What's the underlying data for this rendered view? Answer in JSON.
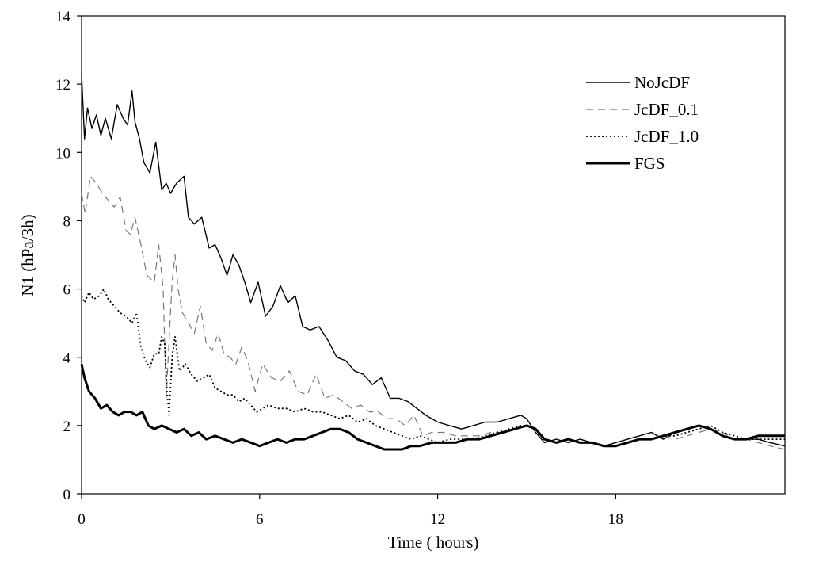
{
  "chart_data": {
    "type": "line",
    "title": "",
    "xlabel": "Time ( hours)",
    "ylabel": "N1 (hPa/3h)",
    "xlim": [
      0,
      23.7
    ],
    "ylim": [
      0,
      14
    ],
    "xticks": [
      0,
      6,
      12,
      18
    ],
    "yticks": [
      0,
      2,
      4,
      6,
      8,
      10,
      12,
      14
    ],
    "grid": false,
    "legend_position": "top-right",
    "series": [
      {
        "name": "NoJcDF",
        "style": "thin-solid",
        "color": "#000000",
        "x": [
          0,
          0.1,
          0.2,
          0.35,
          0.5,
          0.65,
          0.8,
          1.0,
          1.2,
          1.4,
          1.55,
          1.7,
          1.8,
          1.95,
          2.1,
          2.3,
          2.5,
          2.7,
          2.85,
          3.0,
          3.2,
          3.45,
          3.6,
          3.8,
          4.05,
          4.3,
          4.5,
          4.7,
          4.9,
          5.1,
          5.3,
          5.5,
          5.7,
          5.95,
          6.2,
          6.45,
          6.7,
          6.95,
          7.2,
          7.45,
          7.7,
          8.0,
          8.3,
          8.6,
          8.9,
          9.2,
          9.5,
          9.8,
          10.1,
          10.4,
          10.7,
          11.0,
          11.3,
          11.6,
          12.0,
          12.4,
          12.8,
          13.2,
          13.6,
          14.0,
          14.4,
          14.8,
          15.0,
          15.3,
          15.6,
          16.0,
          16.4,
          16.8,
          17.2,
          17.6,
          18.0,
          18.4,
          18.8,
          19.2,
          19.6,
          20.0,
          20.4,
          20.8,
          21.2,
          21.6,
          22.0,
          22.4,
          22.8,
          23.2,
          23.7
        ],
        "values": [
          12.3,
          10.4,
          11.3,
          10.7,
          11.1,
          10.5,
          11.0,
          10.4,
          11.4,
          11.0,
          10.8,
          11.8,
          10.9,
          10.4,
          9.7,
          9.4,
          10.3,
          8.9,
          9.1,
          8.8,
          9.1,
          9.3,
          8.1,
          7.9,
          8.1,
          7.2,
          7.3,
          6.9,
          6.4,
          7.0,
          6.7,
          6.2,
          5.6,
          6.2,
          5.2,
          5.5,
          6.1,
          5.6,
          5.8,
          4.9,
          4.8,
          4.9,
          4.5,
          4.0,
          3.9,
          3.6,
          3.5,
          3.2,
          3.4,
          2.8,
          2.8,
          2.7,
          2.5,
          2.3,
          2.1,
          2.0,
          1.9,
          2.0,
          2.1,
          2.1,
          2.2,
          2.3,
          2.2,
          1.8,
          1.5,
          1.6,
          1.5,
          1.6,
          1.5,
          1.4,
          1.5,
          1.6,
          1.7,
          1.8,
          1.6,
          1.8,
          1.9,
          2.0,
          1.9,
          1.7,
          1.6,
          1.6,
          1.6,
          1.5,
          1.4
        ]
      },
      {
        "name": "JcDF_0.1",
        "style": "dashed",
        "color": "#777777",
        "x": [
          0,
          0.12,
          0.3,
          0.5,
          0.7,
          0.9,
          1.1,
          1.3,
          1.5,
          1.65,
          1.8,
          2.0,
          2.2,
          2.45,
          2.6,
          2.75,
          2.85,
          2.95,
          3.05,
          3.15,
          3.25,
          3.4,
          3.6,
          3.8,
          4.0,
          4.2,
          4.4,
          4.6,
          4.8,
          5.0,
          5.2,
          5.4,
          5.6,
          5.85,
          6.1,
          6.4,
          6.7,
          7.0,
          7.3,
          7.6,
          7.9,
          8.2,
          8.5,
          8.8,
          9.1,
          9.4,
          9.7,
          10.0,
          10.3,
          10.6,
          10.9,
          11.2,
          11.5,
          11.8,
          12.2,
          12.6,
          13.0,
          13.4,
          13.8,
          14.2,
          14.6,
          15.0,
          15.3,
          15.6,
          16.0,
          16.4,
          16.8,
          17.2,
          17.6,
          18.0,
          18.4,
          18.8,
          19.2,
          19.6,
          20.0,
          20.4,
          20.8,
          21.2,
          21.6,
          22.0,
          22.4,
          22.8,
          23.2,
          23.7
        ],
        "values": [
          8.8,
          8.2,
          9.3,
          9.1,
          8.8,
          8.6,
          8.4,
          8.7,
          7.7,
          7.6,
          8.1,
          7.3,
          6.4,
          6.2,
          7.3,
          6.0,
          2.8,
          4.5,
          6.2,
          7.0,
          6.0,
          5.3,
          5.0,
          4.7,
          5.5,
          4.4,
          4.2,
          4.7,
          4.1,
          4.0,
          3.8,
          4.3,
          3.9,
          3.0,
          3.8,
          3.4,
          3.3,
          3.6,
          3.0,
          2.9,
          3.5,
          2.8,
          2.9,
          2.7,
          2.5,
          2.6,
          2.4,
          2.4,
          2.2,
          2.2,
          2.0,
          2.3,
          1.7,
          1.8,
          1.8,
          1.7,
          1.7,
          1.7,
          1.8,
          1.8,
          1.9,
          2.0,
          1.9,
          1.6,
          1.5,
          1.6,
          1.5,
          1.5,
          1.4,
          1.4,
          1.5,
          1.6,
          1.6,
          1.7,
          1.6,
          1.7,
          1.8,
          1.9,
          1.8,
          1.6,
          1.6,
          1.5,
          1.4,
          1.3
        ]
      },
      {
        "name": "JcDF_1.0",
        "style": "dotted",
        "color": "#000000",
        "x": [
          0,
          0.1,
          0.25,
          0.4,
          0.6,
          0.75,
          0.9,
          1.1,
          1.3,
          1.5,
          1.7,
          1.85,
          2.0,
          2.15,
          2.3,
          2.45,
          2.6,
          2.7,
          2.8,
          2.88,
          2.95,
          3.05,
          3.15,
          3.3,
          3.5,
          3.7,
          3.9,
          4.1,
          4.3,
          4.5,
          4.7,
          4.9,
          5.1,
          5.3,
          5.5,
          5.7,
          5.9,
          6.1,
          6.3,
          6.6,
          6.9,
          7.2,
          7.5,
          7.8,
          8.1,
          8.4,
          8.7,
          9.0,
          9.3,
          9.6,
          9.9,
          10.2,
          10.5,
          10.8,
          11.1,
          11.4,
          11.7,
          12.0,
          12.4,
          12.8,
          13.2,
          13.6,
          14.0,
          14.4,
          14.8,
          15.0,
          15.3,
          15.6,
          16.0,
          16.4,
          16.8,
          17.2,
          17.6,
          18.0,
          18.4,
          18.8,
          19.2,
          19.6,
          20.0,
          20.4,
          20.8,
          21.2,
          21.6,
          22.0,
          22.4,
          22.8,
          23.2,
          23.7
        ],
        "values": [
          5.8,
          5.6,
          5.9,
          5.7,
          5.8,
          6.0,
          5.7,
          5.5,
          5.3,
          5.2,
          5.0,
          5.3,
          4.3,
          3.9,
          3.7,
          4.1,
          4.1,
          4.6,
          4.4,
          3.0,
          2.3,
          4.0,
          4.6,
          3.6,
          3.8,
          3.5,
          3.3,
          3.4,
          3.5,
          3.1,
          3.0,
          2.9,
          2.9,
          2.7,
          2.8,
          2.6,
          2.4,
          2.5,
          2.6,
          2.5,
          2.5,
          2.4,
          2.5,
          2.4,
          2.4,
          2.3,
          2.2,
          2.3,
          2.1,
          2.2,
          2.0,
          1.9,
          1.8,
          1.7,
          1.6,
          1.7,
          1.6,
          1.5,
          1.6,
          1.6,
          1.6,
          1.7,
          1.8,
          1.9,
          2.0,
          2.0,
          1.9,
          1.6,
          1.5,
          1.6,
          1.5,
          1.5,
          1.4,
          1.4,
          1.5,
          1.6,
          1.6,
          1.7,
          1.7,
          1.8,
          1.9,
          2.0,
          1.8,
          1.7,
          1.6,
          1.6,
          1.6,
          1.6
        ]
      },
      {
        "name": "FGS",
        "style": "thick-solid",
        "color": "#000000",
        "x": [
          0,
          0.1,
          0.25,
          0.45,
          0.65,
          0.85,
          1.05,
          1.25,
          1.45,
          1.65,
          1.85,
          2.05,
          2.25,
          2.45,
          2.7,
          2.95,
          3.2,
          3.45,
          3.7,
          3.95,
          4.2,
          4.5,
          4.8,
          5.1,
          5.4,
          5.7,
          6.0,
          6.3,
          6.6,
          6.9,
          7.2,
          7.5,
          7.8,
          8.1,
          8.4,
          8.7,
          9.0,
          9.3,
          9.6,
          9.9,
          10.2,
          10.5,
          10.8,
          11.1,
          11.4,
          11.8,
          12.2,
          12.6,
          13.0,
          13.4,
          13.8,
          14.2,
          14.6,
          15.0,
          15.3,
          15.6,
          16.0,
          16.4,
          16.8,
          17.2,
          17.6,
          18.0,
          18.4,
          18.8,
          19.2,
          19.6,
          20.0,
          20.4,
          20.8,
          21.2,
          21.6,
          22.0,
          22.4,
          22.8,
          23.2,
          23.7
        ],
        "values": [
          3.8,
          3.4,
          3.0,
          2.8,
          2.5,
          2.6,
          2.4,
          2.3,
          2.4,
          2.4,
          2.3,
          2.4,
          2.0,
          1.9,
          2.0,
          1.9,
          1.8,
          1.9,
          1.7,
          1.8,
          1.6,
          1.7,
          1.6,
          1.5,
          1.6,
          1.5,
          1.4,
          1.5,
          1.6,
          1.5,
          1.6,
          1.6,
          1.7,
          1.8,
          1.9,
          1.9,
          1.8,
          1.6,
          1.5,
          1.4,
          1.3,
          1.3,
          1.3,
          1.4,
          1.4,
          1.5,
          1.5,
          1.5,
          1.6,
          1.6,
          1.7,
          1.8,
          1.9,
          2.0,
          1.9,
          1.6,
          1.5,
          1.6,
          1.5,
          1.5,
          1.4,
          1.4,
          1.5,
          1.6,
          1.6,
          1.7,
          1.8,
          1.9,
          2.0,
          1.9,
          1.7,
          1.6,
          1.6,
          1.7,
          1.7,
          1.7
        ]
      }
    ]
  }
}
